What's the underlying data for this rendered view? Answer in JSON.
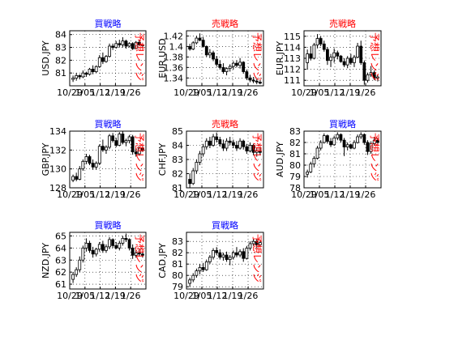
{
  "chart_data": [
    {
      "type": "candlestick",
      "title": "買戦略",
      "title_color": "#0000ff",
      "ylabel": "USD.JPY",
      "annotation": "予想レンジ",
      "annotation_color": "#ff0000",
      "xtick_labels": [
        "10/29",
        "1/05",
        "1/12",
        "1/19",
        "1/26"
      ],
      "ylim": [
        80,
        84.3
      ],
      "yticks": [
        81,
        82,
        83,
        84
      ],
      "candles": [
        [
          80.5,
          80.8,
          80.3,
          80.6
        ],
        [
          80.6,
          81.0,
          80.4,
          80.8
        ],
        [
          80.8,
          80.9,
          80.5,
          80.7
        ],
        [
          80.7,
          81.2,
          80.6,
          81.0
        ],
        [
          81.0,
          81.1,
          80.7,
          80.9
        ],
        [
          80.9,
          81.4,
          80.8,
          81.3
        ],
        [
          81.3,
          81.6,
          80.9,
          81.1
        ],
        [
          81.1,
          81.6,
          81.0,
          81.5
        ],
        [
          81.5,
          82.4,
          81.4,
          82.2
        ],
        [
          82.2,
          82.6,
          81.7,
          81.9
        ],
        [
          81.9,
          82.4,
          81.8,
          82.3
        ],
        [
          82.3,
          83.3,
          82.2,
          83.1
        ],
        [
          83.1,
          83.3,
          82.8,
          83.0
        ],
        [
          83.0,
          83.5,
          82.9,
          83.3
        ],
        [
          83.3,
          83.6,
          83.0,
          83.2
        ],
        [
          83.2,
          83.8,
          83.0,
          83.5
        ],
        [
          83.5,
          83.6,
          82.9,
          83.1
        ],
        [
          83.1,
          83.4,
          83.0,
          83.3
        ],
        [
          83.3,
          83.4,
          82.8,
          82.9
        ],
        [
          82.9,
          83.5,
          82.9,
          83.4
        ],
        [
          83.4,
          83.6,
          83.1,
          83.2
        ],
        [
          83.2,
          83.3,
          83.0,
          83.2
        ]
      ]
    },
    {
      "type": "candlestick",
      "title": "売戦略",
      "title_color": "#ff0000",
      "ylabel": "EUR.USD",
      "annotation": "予想レンジ",
      "annotation_color": "#ff0000",
      "xtick_labels": [
        "10/29",
        "1/05",
        "1/12",
        "1/19",
        "1/26"
      ],
      "ylim": [
        1.325,
        1.43
      ],
      "yticks": [
        1.34,
        1.36,
        1.38,
        1.4,
        1.42
      ],
      "candles": [
        [
          1.4,
          1.405,
          1.392,
          1.395
        ],
        [
          1.395,
          1.41,
          1.393,
          1.407
        ],
        [
          1.407,
          1.42,
          1.404,
          1.416
        ],
        [
          1.416,
          1.425,
          1.41,
          1.412
        ],
        [
          1.412,
          1.418,
          1.398,
          1.4
        ],
        [
          1.4,
          1.402,
          1.38,
          1.384
        ],
        [
          1.384,
          1.395,
          1.378,
          1.388
        ],
        [
          1.388,
          1.392,
          1.372,
          1.376
        ],
        [
          1.376,
          1.382,
          1.362,
          1.366
        ],
        [
          1.366,
          1.374,
          1.356,
          1.36
        ],
        [
          1.36,
          1.368,
          1.348,
          1.352
        ],
        [
          1.352,
          1.36,
          1.345,
          1.358
        ],
        [
          1.358,
          1.366,
          1.352,
          1.362
        ],
        [
          1.362,
          1.372,
          1.356,
          1.368
        ],
        [
          1.368,
          1.374,
          1.36,
          1.364
        ],
        [
          1.364,
          1.378,
          1.358,
          1.37
        ],
        [
          1.37,
          1.372,
          1.348,
          1.352
        ],
        [
          1.352,
          1.356,
          1.336,
          1.34
        ],
        [
          1.34,
          1.346,
          1.332,
          1.336
        ],
        [
          1.336,
          1.342,
          1.33,
          1.334
        ],
        [
          1.334,
          1.338,
          1.328,
          1.332
        ],
        [
          1.332,
          1.336,
          1.328,
          1.33
        ]
      ]
    },
    {
      "type": "candlestick",
      "title": "売戦略",
      "title_color": "#ff0000",
      "ylabel": "EUR.JPY",
      "annotation": "予想レンジ",
      "annotation_color": "#ff0000",
      "xtick_labels": [
        "10/29",
        "1/05",
        "1/12",
        "1/19",
        "1/26"
      ],
      "ylim": [
        110.5,
        115.5
      ],
      "yticks": [
        111,
        112,
        113,
        114,
        115
      ],
      "candles": [
        [
          112.6,
          113.8,
          112.0,
          113.4
        ],
        [
          113.4,
          114.1,
          112.8,
          113.0
        ],
        [
          113.0,
          114.4,
          112.9,
          114.2
        ],
        [
          114.2,
          115.2,
          113.9,
          114.8
        ],
        [
          114.8,
          115.0,
          114.1,
          114.3
        ],
        [
          114.3,
          114.6,
          113.6,
          113.8
        ],
        [
          113.8,
          114.0,
          112.4,
          112.8
        ],
        [
          112.8,
          113.4,
          112.2,
          113.1
        ],
        [
          113.1,
          113.9,
          112.6,
          113.5
        ],
        [
          113.5,
          113.7,
          112.9,
          113.2
        ],
        [
          113.2,
          113.3,
          112.6,
          112.7
        ],
        [
          112.7,
          113.0,
          112.2,
          112.4
        ],
        [
          112.4,
          113.2,
          112.1,
          113.0
        ],
        [
          113.0,
          113.4,
          112.4,
          112.6
        ],
        [
          112.6,
          113.3,
          112.2,
          113.1
        ],
        [
          113.1,
          114.4,
          113.0,
          114.1
        ],
        [
          114.1,
          114.6,
          112.4,
          112.6
        ],
        [
          112.6,
          112.8,
          110.6,
          111.0
        ],
        [
          111.0,
          111.7,
          110.8,
          111.5
        ],
        [
          111.5,
          112.3,
          111.3,
          111.7
        ],
        [
          111.7,
          111.9,
          111.0,
          111.2
        ],
        [
          111.2,
          111.5,
          110.9,
          111.3
        ]
      ]
    },
    {
      "type": "candlestick",
      "title": "買戦略",
      "title_color": "#0000ff",
      "ylabel": "GBP.JPY",
      "annotation": "予想レンジ",
      "annotation_color": "#ff0000",
      "xtick_labels": [
        "10/29",
        "1/05",
        "1/12",
        "1/19",
        "1/26"
      ],
      "ylim": [
        128,
        134
      ],
      "yticks": [
        128,
        130,
        132,
        134
      ],
      "candles": [
        [
          128.8,
          129.4,
          128.6,
          129.2
        ],
        [
          129.2,
          129.6,
          128.7,
          128.9
        ],
        [
          128.9,
          130.3,
          128.8,
          130.0
        ],
        [
          130.0,
          131.0,
          129.8,
          130.8
        ],
        [
          130.8,
          131.6,
          130.5,
          131.3
        ],
        [
          131.3,
          131.5,
          130.4,
          130.6
        ],
        [
          130.6,
          131.0,
          129.9,
          130.2
        ],
        [
          130.2,
          130.8,
          129.9,
          130.6
        ],
        [
          130.6,
          132.6,
          130.4,
          132.4
        ],
        [
          132.4,
          133.1,
          131.8,
          132.0
        ],
        [
          132.0,
          132.5,
          131.6,
          132.3
        ],
        [
          132.3,
          133.7,
          132.1,
          133.5
        ],
        [
          133.5,
          133.8,
          132.8,
          133.0
        ],
        [
          133.0,
          133.3,
          132.3,
          132.5
        ],
        [
          132.5,
          133.9,
          132.4,
          133.7
        ],
        [
          133.7,
          134.0,
          132.6,
          132.8
        ],
        [
          132.8,
          133.2,
          132.4,
          133.0
        ],
        [
          133.0,
          133.6,
          132.7,
          133.4
        ],
        [
          133.4,
          133.6,
          131.5,
          131.8
        ],
        [
          131.8,
          132.2,
          131.3,
          131.6
        ],
        [
          131.6,
          132.4,
          131.4,
          132.2
        ],
        [
          132.2,
          132.5,
          131.8,
          132.0
        ]
      ]
    },
    {
      "type": "candlestick",
      "title": "売戦略",
      "title_color": "#ff0000",
      "ylabel": "CHF.JPY",
      "annotation": "予想レンジ",
      "annotation_color": "#ff0000",
      "xtick_labels": [
        "10/29",
        "1/05",
        "1/12",
        "1/19",
        "1/26"
      ],
      "ylim": [
        81,
        85
      ],
      "yticks": [
        81,
        82,
        83,
        84,
        85
      ],
      "candles": [
        [
          81.6,
          82.0,
          81.0,
          81.3
        ],
        [
          81.3,
          82.4,
          81.2,
          82.2
        ],
        [
          82.2,
          83.0,
          82.0,
          82.8
        ],
        [
          82.8,
          83.6,
          82.6,
          83.4
        ],
        [
          83.4,
          84.1,
          83.2,
          83.9
        ],
        [
          83.9,
          84.5,
          83.7,
          84.3
        ],
        [
          84.3,
          84.6,
          83.8,
          84.0
        ],
        [
          84.0,
          84.8,
          83.9,
          84.6
        ],
        [
          84.6,
          84.9,
          84.2,
          84.4
        ],
        [
          84.4,
          84.6,
          83.9,
          84.1
        ],
        [
          84.1,
          84.4,
          83.6,
          83.8
        ],
        [
          83.8,
          84.5,
          83.6,
          84.3
        ],
        [
          84.3,
          84.6,
          84.0,
          84.2
        ],
        [
          84.2,
          84.4,
          83.8,
          84.0
        ],
        [
          84.0,
          84.3,
          83.6,
          83.8
        ],
        [
          83.8,
          84.5,
          83.7,
          84.3
        ],
        [
          84.3,
          84.4,
          83.7,
          83.9
        ],
        [
          83.9,
          84.1,
          83.4,
          83.6
        ],
        [
          83.6,
          84.2,
          83.5,
          84.0
        ],
        [
          84.0,
          84.1,
          83.3,
          83.5
        ],
        [
          83.5,
          83.8,
          83.2,
          83.6
        ],
        [
          83.6,
          83.9,
          83.3,
          83.5
        ]
      ]
    },
    {
      "type": "candlestick",
      "title": "買戦略",
      "title_color": "#0000ff",
      "ylabel": "AUD.JPY",
      "annotation": "予想レンジ",
      "annotation_color": "#ff0000",
      "xtick_labels": [
        "10/29",
        "1/05",
        "1/12",
        "1/19",
        "1/26"
      ],
      "ylim": [
        78,
        83
      ],
      "yticks": [
        78,
        79,
        80,
        81,
        82,
        83
      ],
      "candles": [
        [
          79.2,
          79.6,
          78.9,
          79.4
        ],
        [
          79.4,
          80.3,
          79.3,
          80.1
        ],
        [
          80.1,
          80.8,
          79.8,
          80.6
        ],
        [
          80.6,
          81.7,
          80.5,
          81.5
        ],
        [
          81.5,
          82.2,
          81.3,
          82.0
        ],
        [
          82.0,
          82.8,
          81.9,
          82.6
        ],
        [
          82.6,
          82.7,
          81.9,
          82.1
        ],
        [
          82.1,
          82.4,
          81.6,
          81.8
        ],
        [
          81.8,
          82.6,
          81.7,
          82.4
        ],
        [
          82.4,
          82.9,
          82.2,
          82.7
        ],
        [
          82.7,
          82.8,
          82.0,
          82.2
        ],
        [
          82.2,
          82.4,
          80.8,
          81.6
        ],
        [
          81.6,
          82.0,
          81.3,
          81.8
        ],
        [
          81.8,
          81.9,
          81.4,
          81.5
        ],
        [
          81.5,
          82.2,
          81.4,
          82.0
        ],
        [
          82.0,
          82.7,
          81.9,
          82.5
        ],
        [
          82.5,
          82.9,
          82.3,
          82.7
        ],
        [
          82.7,
          82.8,
          81.8,
          82.0
        ],
        [
          82.0,
          82.2,
          80.9,
          81.2
        ],
        [
          81.2,
          82.1,
          81.0,
          81.9
        ],
        [
          81.9,
          82.5,
          81.7,
          82.2
        ],
        [
          82.2,
          82.4,
          81.8,
          82.0
        ]
      ]
    },
    {
      "type": "candlestick",
      "title": "買戦略",
      "title_color": "#0000ff",
      "ylabel": "NZD.JPY",
      "annotation": "予想レンジ",
      "annotation_color": "#ff0000",
      "xtick_labels": [
        "10/29",
        "1/05",
        "1/12",
        "1/19",
        "1/26"
      ],
      "ylim": [
        60.6,
        65.3
      ],
      "yticks": [
        61,
        62,
        63,
        64,
        65
      ],
      "candles": [
        [
          61.4,
          62.0,
          61.1,
          61.8
        ],
        [
          61.8,
          62.4,
          61.6,
          62.2
        ],
        [
          62.2,
          63.3,
          62.0,
          63.0
        ],
        [
          63.0,
          64.2,
          62.8,
          64.0
        ],
        [
          64.0,
          64.8,
          63.7,
          64.4
        ],
        [
          64.4,
          64.6,
          63.6,
          63.8
        ],
        [
          63.8,
          64.1,
          63.2,
          63.5
        ],
        [
          63.5,
          64.0,
          63.3,
          63.9
        ],
        [
          63.9,
          64.5,
          63.7,
          64.3
        ],
        [
          64.3,
          64.6,
          63.6,
          63.8
        ],
        [
          63.8,
          64.3,
          63.6,
          64.1
        ],
        [
          64.1,
          64.9,
          63.9,
          64.7
        ],
        [
          64.7,
          64.8,
          64.0,
          64.2
        ],
        [
          64.2,
          64.5,
          63.9,
          64.0
        ],
        [
          64.0,
          64.6,
          63.8,
          64.4
        ],
        [
          64.4,
          65.0,
          64.2,
          64.8
        ],
        [
          64.8,
          65.2,
          64.5,
          64.7
        ],
        [
          64.7,
          64.8,
          63.8,
          64.0
        ],
        [
          64.0,
          64.3,
          63.1,
          63.4
        ],
        [
          63.4,
          63.8,
          63.2,
          63.6
        ],
        [
          63.6,
          63.9,
          63.3,
          63.5
        ],
        [
          63.5,
          63.7,
          63.2,
          63.4
        ]
      ]
    },
    {
      "type": "candlestick",
      "title": "買戦略",
      "title_color": "#0000ff",
      "ylabel": "CAD.JPY",
      "annotation": "予想レンジ",
      "annotation_color": "#ff0000",
      "xtick_labels": [
        "10/29",
        "1/05",
        "1/12",
        "1/19",
        "1/26"
      ],
      "ylim": [
        78.8,
        83.8
      ],
      "yticks": [
        79,
        80,
        81,
        82,
        83
      ],
      "candles": [
        [
          79.3,
          79.8,
          79.0,
          79.6
        ],
        [
          79.6,
          80.2,
          79.4,
          80.0
        ],
        [
          80.0,
          80.6,
          79.8,
          80.4
        ],
        [
          80.4,
          81.0,
          80.1,
          80.7
        ],
        [
          80.7,
          81.1,
          80.3,
          80.5
        ],
        [
          80.5,
          81.4,
          80.4,
          81.2
        ],
        [
          81.2,
          81.8,
          81.0,
          81.6
        ],
        [
          81.6,
          82.4,
          81.4,
          82.2
        ],
        [
          82.2,
          82.5,
          81.8,
          82.0
        ],
        [
          82.0,
          82.3,
          81.4,
          81.6
        ],
        [
          81.6,
          82.0,
          81.3,
          81.8
        ],
        [
          81.8,
          82.1,
          81.2,
          81.4
        ],
        [
          81.4,
          81.8,
          80.9,
          81.6
        ],
        [
          81.6,
          82.2,
          81.4,
          82.0
        ],
        [
          82.0,
          82.5,
          81.6,
          81.8
        ],
        [
          81.8,
          82.3,
          81.6,
          82.1
        ],
        [
          82.1,
          82.4,
          81.2,
          81.5
        ],
        [
          81.5,
          82.6,
          81.4,
          82.4
        ],
        [
          82.4,
          83.0,
          82.2,
          82.8
        ],
        [
          82.8,
          83.2,
          82.6,
          83.0
        ],
        [
          83.0,
          83.2,
          82.4,
          82.7
        ],
        [
          82.7,
          83.1,
          82.5,
          82.9
        ]
      ]
    }
  ]
}
